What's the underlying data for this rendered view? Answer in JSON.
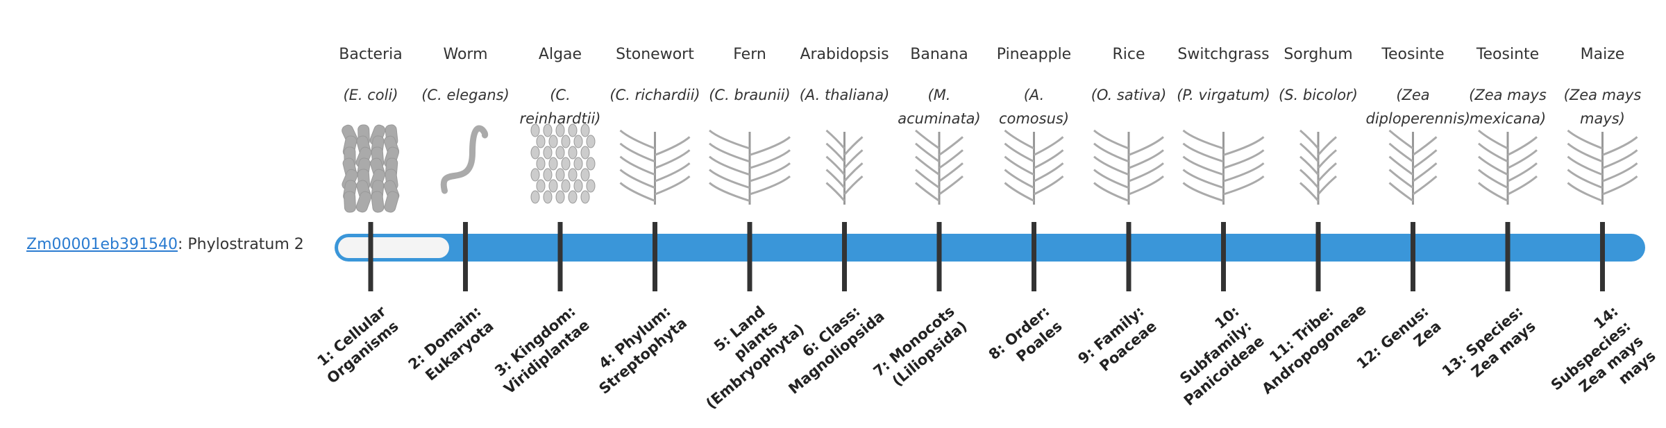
{
  "gene": {
    "id": "Zm00001eb391540",
    "label": ": Phylostratum 2"
  },
  "organisms": [
    {
      "name": "Bacteria",
      "species": "(E. coli)"
    },
    {
      "name": "Worm",
      "species": "(C. elegans)"
    },
    {
      "name": "Algae",
      "species": "(C. reinhardtii)"
    },
    {
      "name": "Stonewort",
      "species": "(C. richardii)"
    },
    {
      "name": "Fern",
      "species": "(C. braunii)"
    },
    {
      "name": "Arabidopsis",
      "species": "(A. thaliana)"
    },
    {
      "name": "Banana",
      "species": "(M. acuminata)"
    },
    {
      "name": "Pineapple",
      "species": "(A. comosus)"
    },
    {
      "name": "Rice",
      "species": "(O. sativa)"
    },
    {
      "name": "Switchgrass",
      "species": "(P. virgatum)"
    },
    {
      "name": "Sorghum",
      "species": "(S. bicolor)"
    },
    {
      "name": "Teosinte",
      "species": "(Zea diploperennis)"
    },
    {
      "name": "Teosinte",
      "species": "(Zea mays mexicana)"
    },
    {
      "name": "Maize",
      "species": "(Zea mays mays)"
    }
  ],
  "strata": [
    "1: Cellular Organisms",
    "2: Domain: Eukaryota",
    "3: Kingdom: Viridiplantae",
    "4: Phylum: Streptophyta",
    "5: Land plants (Embryophyta)",
    "6: Class: Magnoliopsida",
    "7: Monocots (Liliopsida)",
    "8: Order: Poales",
    "9: Family: Poaceae",
    "10: Subfamily: Panicoideae",
    "11: Tribe: Andropogoneae",
    "12: Genus: Zea",
    "13: Species: Zea mays",
    "14: Subspecies: Zea mays mays"
  ]
}
